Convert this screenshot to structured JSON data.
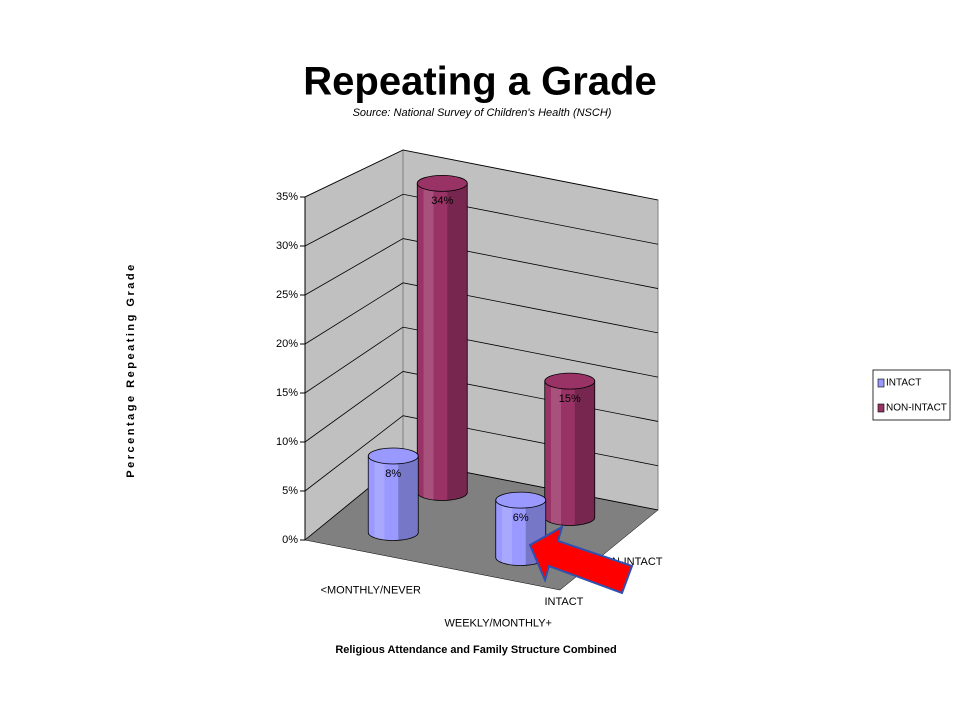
{
  "chart_data": {
    "type": "bar3d",
    "title": "Repeating a Grade",
    "subtitle": "Source: National Survey of Children's Health (NSCH)",
    "y_label": "Percentage Repeating Grade",
    "x_label": "Religious Attendance and Family Structure Combined",
    "categories": [
      "<MONTHLY/NEVER",
      "WEEKLY/MONTHLY+"
    ],
    "series": [
      {
        "name": "INTACT",
        "color": "#9999ff",
        "values": [
          8,
          6
        ],
        "value_labels": [
          "8%",
          "6%"
        ]
      },
      {
        "name": "NON-INTACT",
        "color": "#993366",
        "values": [
          34,
          15
        ],
        "value_labels": [
          "34%",
          "15%"
        ]
      }
    ],
    "ylim": [
      0,
      35
    ],
    "yticks": [
      {
        "value": 0,
        "label": "0%"
      },
      {
        "value": 5,
        "label": "5%"
      },
      {
        "value": 10,
        "label": "10%"
      },
      {
        "value": 15,
        "label": "15%"
      },
      {
        "value": 20,
        "label": "20%"
      },
      {
        "value": 25,
        "label": "25%"
      },
      {
        "value": 30,
        "label": "30%"
      },
      {
        "value": 35,
        "label": "35%"
      }
    ],
    "grid": true,
    "legend": "right"
  }
}
